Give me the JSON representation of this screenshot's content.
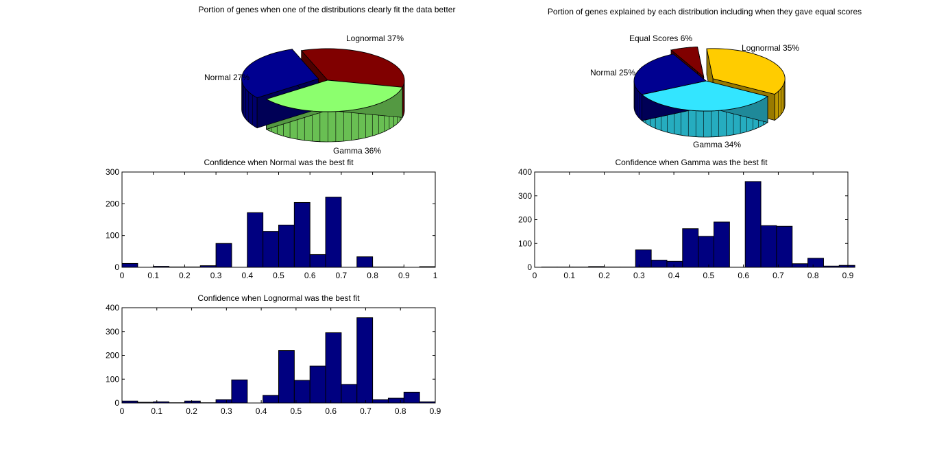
{
  "chart_data": [
    {
      "id": "pie1",
      "type": "pie",
      "title": "Portion of genes when one of the distributions clearly fit the data better",
      "slices": [
        {
          "label": "Lognormal 37%",
          "value": 37,
          "color": "#800000"
        },
        {
          "label": "Gamma 36%",
          "value": 36,
          "color": "#8CFF6E"
        },
        {
          "label": "Normal 27%",
          "value": 27,
          "color": "#000090",
          "exploded": true
        }
      ]
    },
    {
      "id": "pie2",
      "type": "pie",
      "title": "Portion of genes explained by each distribution including when they gave equal scores",
      "slices": [
        {
          "label": "Lognormal 35%",
          "value": 35,
          "color": "#FFCC00",
          "exploded": true
        },
        {
          "label": "Gamma 34%",
          "value": 34,
          "color": "#33E5FF"
        },
        {
          "label": "Normal 25%",
          "value": 25,
          "color": "#000090"
        },
        {
          "label": "Equal Scores 6%",
          "value": 6,
          "color": "#800000",
          "exploded": true
        }
      ]
    },
    {
      "id": "hist1",
      "type": "bar",
      "title": "Confidence when Normal was the best fit",
      "xlabel": "",
      "ylabel": "",
      "xlim": [
        0,
        1
      ],
      "ylim": [
        0,
        300
      ],
      "xticks": [
        "0",
        "0.1",
        "0.2",
        "0.3",
        "0.4",
        "0.5",
        "0.6",
        "0.7",
        "0.8",
        "0.9",
        "1"
      ],
      "yticks": [
        "0",
        "100",
        "200",
        "300"
      ],
      "bar_color": "#000080",
      "bins": [
        {
          "x0": 0.0,
          "x1": 0.05,
          "value": 12
        },
        {
          "x0": 0.05,
          "x1": 0.1,
          "value": 0
        },
        {
          "x0": 0.1,
          "x1": 0.15,
          "value": 3
        },
        {
          "x0": 0.15,
          "x1": 0.2,
          "value": 1
        },
        {
          "x0": 0.2,
          "x1": 0.25,
          "value": 1
        },
        {
          "x0": 0.25,
          "x1": 0.3,
          "value": 5
        },
        {
          "x0": 0.3,
          "x1": 0.35,
          "value": 75
        },
        {
          "x0": 0.35,
          "x1": 0.4,
          "value": 0
        },
        {
          "x0": 0.4,
          "x1": 0.45,
          "value": 172
        },
        {
          "x0": 0.45,
          "x1": 0.5,
          "value": 113
        },
        {
          "x0": 0.5,
          "x1": 0.55,
          "value": 133
        },
        {
          "x0": 0.55,
          "x1": 0.6,
          "value": 204
        },
        {
          "x0": 0.6,
          "x1": 0.65,
          "value": 40
        },
        {
          "x0": 0.65,
          "x1": 0.7,
          "value": 221
        },
        {
          "x0": 0.7,
          "x1": 0.75,
          "value": 0
        },
        {
          "x0": 0.75,
          "x1": 0.8,
          "value": 33
        },
        {
          "x0": 0.8,
          "x1": 0.85,
          "value": 1
        },
        {
          "x0": 0.85,
          "x1": 0.9,
          "value": 1
        },
        {
          "x0": 0.9,
          "x1": 0.95,
          "value": 0
        },
        {
          "x0": 0.95,
          "x1": 1.0,
          "value": 2
        }
      ]
    },
    {
      "id": "hist2",
      "type": "bar",
      "title": "Confidence when Gamma was the best fit",
      "xlabel": "",
      "ylabel": "",
      "xlim": [
        0,
        0.9
      ],
      "ylim": [
        0,
        400
      ],
      "xticks": [
        "0",
        "0.1",
        "0.2",
        "0.3",
        "0.4",
        "0.5",
        "0.6",
        "0.7",
        "0.8",
        "0.9"
      ],
      "yticks": [
        "0",
        "100",
        "200",
        "300",
        "400"
      ],
      "bar_color": "#000080",
      "bins": [
        {
          "x0": 0.02,
          "x1": 0.065,
          "value": 1
        },
        {
          "x0": 0.065,
          "x1": 0.11,
          "value": 1
        },
        {
          "x0": 0.11,
          "x1": 0.155,
          "value": 1
        },
        {
          "x0": 0.155,
          "x1": 0.2,
          "value": 3
        },
        {
          "x0": 0.2,
          "x1": 0.245,
          "value": 1
        },
        {
          "x0": 0.245,
          "x1": 0.29,
          "value": 1
        },
        {
          "x0": 0.29,
          "x1": 0.335,
          "value": 73
        },
        {
          "x0": 0.335,
          "x1": 0.38,
          "value": 30
        },
        {
          "x0": 0.38,
          "x1": 0.425,
          "value": 25
        },
        {
          "x0": 0.425,
          "x1": 0.47,
          "value": 162
        },
        {
          "x0": 0.47,
          "x1": 0.515,
          "value": 130
        },
        {
          "x0": 0.515,
          "x1": 0.56,
          "value": 190
        },
        {
          "x0": 0.56,
          "x1": 0.605,
          "value": 0
        },
        {
          "x0": 0.605,
          "x1": 0.65,
          "value": 360
        },
        {
          "x0": 0.65,
          "x1": 0.695,
          "value": 175
        },
        {
          "x0": 0.695,
          "x1": 0.74,
          "value": 172
        },
        {
          "x0": 0.74,
          "x1": 0.785,
          "value": 15
        },
        {
          "x0": 0.785,
          "x1": 0.83,
          "value": 38
        },
        {
          "x0": 0.83,
          "x1": 0.875,
          "value": 5
        },
        {
          "x0": 0.875,
          "x1": 0.92,
          "value": 8
        }
      ]
    },
    {
      "id": "hist3",
      "type": "bar",
      "title": "Confidence when Lognormal was the best fit",
      "xlabel": "",
      "ylabel": "",
      "xlim": [
        0,
        0.9
      ],
      "ylim": [
        0,
        400
      ],
      "xticks": [
        "0",
        "0.1",
        "0.2",
        "0.3",
        "0.4",
        "0.5",
        "0.6",
        "0.7",
        "0.8",
        "0.9"
      ],
      "yticks": [
        "0",
        "100",
        "200",
        "300",
        "400"
      ],
      "bar_color": "#000080",
      "bins": [
        {
          "x0": 0.0,
          "x1": 0.045,
          "value": 8
        },
        {
          "x0": 0.045,
          "x1": 0.09,
          "value": 3
        },
        {
          "x0": 0.09,
          "x1": 0.135,
          "value": 5
        },
        {
          "x0": 0.135,
          "x1": 0.18,
          "value": 1
        },
        {
          "x0": 0.18,
          "x1": 0.225,
          "value": 8
        },
        {
          "x0": 0.225,
          "x1": 0.27,
          "value": 1
        },
        {
          "x0": 0.27,
          "x1": 0.315,
          "value": 14
        },
        {
          "x0": 0.315,
          "x1": 0.36,
          "value": 97
        },
        {
          "x0": 0.36,
          "x1": 0.405,
          "value": 0
        },
        {
          "x0": 0.405,
          "x1": 0.45,
          "value": 32
        },
        {
          "x0": 0.45,
          "x1": 0.495,
          "value": 220
        },
        {
          "x0": 0.495,
          "x1": 0.54,
          "value": 95
        },
        {
          "x0": 0.54,
          "x1": 0.585,
          "value": 155
        },
        {
          "x0": 0.585,
          "x1": 0.63,
          "value": 295
        },
        {
          "x0": 0.63,
          "x1": 0.675,
          "value": 78
        },
        {
          "x0": 0.675,
          "x1": 0.72,
          "value": 358
        },
        {
          "x0": 0.72,
          "x1": 0.765,
          "value": 14
        },
        {
          "x0": 0.765,
          "x1": 0.81,
          "value": 20
        },
        {
          "x0": 0.81,
          "x1": 0.855,
          "value": 45
        },
        {
          "x0": 0.855,
          "x1": 0.9,
          "value": 5
        }
      ]
    }
  ]
}
